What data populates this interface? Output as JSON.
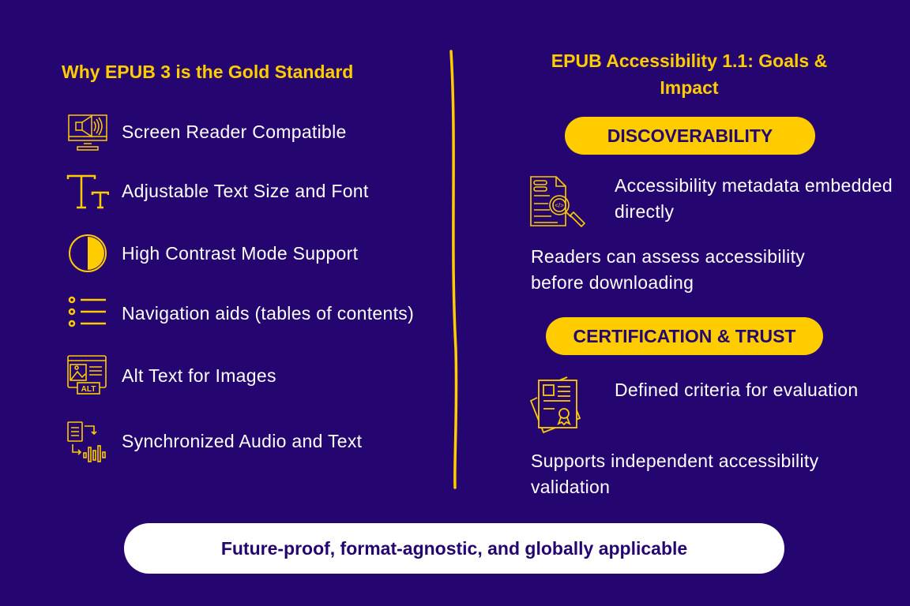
{
  "colors": {
    "background": "#250670",
    "accent": "#ffcc00",
    "footer_bg": "#ffffff"
  },
  "left": {
    "title": "Why EPUB 3 is the Gold Standard",
    "items": [
      {
        "icon": "screen-reader-icon",
        "label": "Screen Reader Compatible"
      },
      {
        "icon": "text-size-icon",
        "label": "Adjustable Text Size and Font"
      },
      {
        "icon": "contrast-icon",
        "label": "High Contrast Mode Support"
      },
      {
        "icon": "list-icon",
        "label": "Navigation aids (tables of contents)"
      },
      {
        "icon": "alt-text-icon",
        "label": "Alt Text for Images"
      },
      {
        "icon": "audio-sync-icon",
        "label": "Synchronized Audio and Text"
      }
    ]
  },
  "right": {
    "title": "EPUB Accessibility 1.1: Goals & Impact",
    "sections": [
      {
        "pill": "DISCOVERABILITY",
        "icon": "metadata-search-icon",
        "point": "Accessibility metadata embedded directly",
        "impact": "Readers can assess accessibility before downloading"
      },
      {
        "pill": "CERTIFICATION & TRUST",
        "icon": "certificate-icon",
        "point": "Defined criteria for evaluation",
        "impact": "Supports independent accessibility validation"
      }
    ]
  },
  "footer": {
    "text": "Future-proof, format-agnostic, and globally applicable"
  }
}
